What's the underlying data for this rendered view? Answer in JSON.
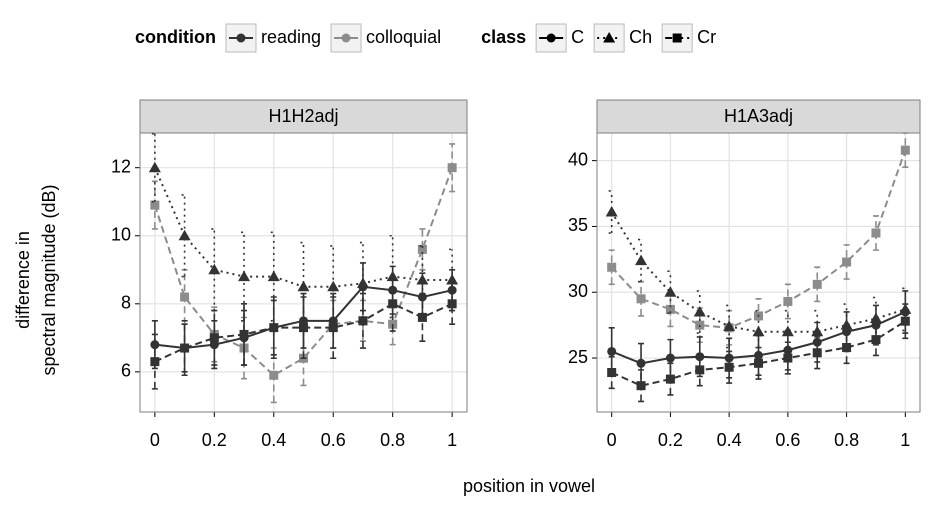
{
  "chart_data": [
    {
      "type": "line",
      "title": "H1H2adj",
      "x": [
        0,
        0.1,
        0.2,
        0.3,
        0.4,
        0.5,
        0.6,
        0.7,
        0.8,
        0.9,
        1
      ],
      "xlim": [
        -0.05,
        1.05
      ],
      "xticks": [
        0,
        0.2,
        0.4,
        0.6,
        0.8,
        1
      ],
      "ylim": [
        4.82,
        13.02
      ],
      "yticks": [
        6,
        8,
        10,
        12
      ],
      "grid": true,
      "series": [
        {
          "condition": 1,
          "class": 2,
          "values": [
            10.9,
            8.2,
            7.1,
            6.7,
            5.9,
            6.4,
            7.4,
            7.5,
            7.4,
            9.6,
            12.0
          ],
          "errors": [
            0.7,
            0.8,
            0.8,
            0.9,
            0.8,
            0.8,
            0.7,
            0.6,
            0.6,
            0.6,
            0.7
          ]
        },
        {
          "condition": 0,
          "class": 0,
          "values": [
            6.8,
            6.7,
            6.8,
            7.0,
            7.3,
            7.5,
            7.5,
            8.5,
            8.4,
            8.2,
            8.4
          ],
          "errors": [
            0.7,
            0.7,
            0.7,
            0.8,
            0.8,
            0.8,
            0.8,
            0.7,
            0.7,
            0.7,
            0.6
          ]
        },
        {
          "condition": 0,
          "class": 1,
          "values": [
            12.0,
            10.0,
            9.0,
            8.8,
            8.8,
            8.5,
            8.5,
            8.6,
            8.8,
            8.7,
            8.7
          ],
          "errors": [
            1.0,
            1.2,
            1.2,
            1.3,
            1.3,
            1.3,
            1.2,
            1.2,
            1.2,
            1.0,
            0.9
          ]
        },
        {
          "condition": 0,
          "class": 2,
          "values": [
            6.3,
            6.7,
            7.0,
            7.1,
            7.3,
            7.3,
            7.3,
            7.5,
            8.0,
            7.6,
            8.0
          ],
          "errors": [
            0.8,
            0.8,
            0.8,
            0.9,
            0.9,
            0.9,
            0.9,
            0.8,
            0.8,
            0.7,
            0.6
          ]
        }
      ]
    },
    {
      "type": "line",
      "title": "H1A3adj",
      "x": [
        0,
        0.1,
        0.2,
        0.3,
        0.4,
        0.5,
        0.6,
        0.7,
        0.8,
        0.9,
        1
      ],
      "xlim": [
        -0.05,
        1.05
      ],
      "xticks": [
        0,
        0.2,
        0.4,
        0.6,
        0.8,
        1
      ],
      "ylim": [
        20.9,
        42.1
      ],
      "yticks": [
        25,
        30,
        35,
        40
      ],
      "grid": true,
      "series": [
        {
          "condition": 1,
          "class": 2,
          "values": [
            31.9,
            29.5,
            28.7,
            27.5,
            27.3,
            28.2,
            29.3,
            30.6,
            32.3,
            34.5,
            40.8
          ],
          "errors": [
            1.3,
            1.3,
            1.3,
            1.3,
            1.3,
            1.3,
            1.3,
            1.3,
            1.3,
            1.3,
            1.3
          ]
        },
        {
          "condition": 0,
          "class": 0,
          "values": [
            25.5,
            24.6,
            25.0,
            25.1,
            25.0,
            25.2,
            25.6,
            26.2,
            27.0,
            27.5,
            28.5
          ],
          "errors": [
            1.8,
            1.5,
            1.4,
            1.5,
            1.5,
            1.5,
            1.5,
            1.5,
            1.5,
            1.5,
            1.6
          ]
        },
        {
          "condition": 0,
          "class": 1,
          "values": [
            36.1,
            32.4,
            30.0,
            28.5,
            27.4,
            27.0,
            27.0,
            27.0,
            27.5,
            28.0,
            28.7
          ],
          "errors": [
            1.6,
            1.6,
            1.6,
            1.6,
            1.6,
            1.6,
            1.6,
            1.6,
            1.6,
            1.6,
            1.6
          ]
        },
        {
          "condition": 0,
          "class": 2,
          "values": [
            23.9,
            22.9,
            23.4,
            24.1,
            24.3,
            24.6,
            25.0,
            25.4,
            25.8,
            26.4,
            27.8
          ],
          "errors": [
            1.2,
            1.2,
            1.2,
            1.2,
            1.2,
            1.2,
            1.2,
            1.2,
            1.2,
            1.2,
            1.3
          ]
        }
      ]
    }
  ],
  "x_label": "position in vowel",
  "y_label": [
    "difference in",
    "spectral magnitude (dB)"
  ],
  "legends": [
    {
      "title": "condition",
      "entries": [
        {
          "label": "reading",
          "color": "#333333"
        },
        {
          "label": "colloquial",
          "color": "#8c8c8c"
        }
      ]
    },
    {
      "title": "class",
      "entries": [
        {
          "label": "C",
          "shape": "circle",
          "dash": "none"
        },
        {
          "label": "Ch",
          "shape": "triangle",
          "dash": "2,4"
        },
        {
          "label": "Cr",
          "shape": "square",
          "dash": "7,4"
        }
      ]
    }
  ]
}
